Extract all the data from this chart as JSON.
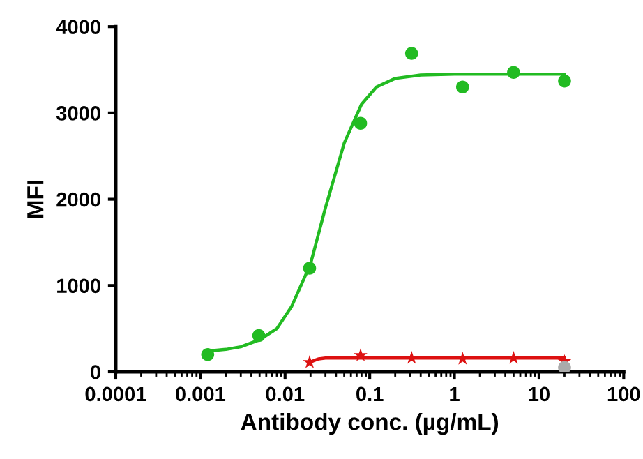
{
  "chart_data": {
    "type": "scatter",
    "xlabel": "Antibody conc. (µg/mL)",
    "ylabel": "MFI",
    "log": "x",
    "grid": false,
    "xlim": [
      0.0001,
      100
    ],
    "xticks": [
      {
        "value": 0.0001,
        "label": "0.0001"
      },
      {
        "value": 0.001,
        "label": "0.001"
      },
      {
        "value": 0.01,
        "label": "0.01"
      },
      {
        "value": 0.1,
        "label": "0.1"
      },
      {
        "value": 1,
        "label": "1"
      },
      {
        "value": 10,
        "label": "10"
      },
      {
        "value": 100,
        "label": "100"
      }
    ],
    "ylim": [
      0,
      4000
    ],
    "yticks": [
      0,
      1000,
      2000,
      3000,
      4000
    ],
    "series": [
      {
        "type": "line",
        "color": "#22bb22",
        "marker": "none",
        "line_style": "solid",
        "x": [
          0.00122,
          0.002,
          0.003,
          0.005,
          0.008,
          0.012,
          0.02,
          0.03,
          0.05,
          0.08,
          0.12,
          0.2,
          0.4,
          1,
          5,
          20
        ],
        "values": [
          240,
          260,
          290,
          370,
          500,
          760,
          1250,
          1900,
          2650,
          3100,
          3300,
          3400,
          3440,
          3450,
          3450,
          3450
        ]
      },
      {
        "color": "#22bb22",
        "marker": "circle",
        "x": [
          0.00122,
          0.0049,
          0.0195,
          0.078,
          0.3125,
          1.25,
          5,
          20
        ],
        "values": [
          200,
          420,
          1200,
          2880,
          3690,
          3300,
          3470,
          3370
        ]
      },
      {
        "type": "line",
        "color": "#dd1111",
        "marker": "none",
        "line_style": "solid",
        "x": [
          0.0195,
          0.022,
          0.025,
          0.03,
          0.05,
          0.1,
          1,
          20
        ],
        "values": [
          110,
          130,
          150,
          160,
          160,
          160,
          160,
          160
        ]
      },
      {
        "color": "#dd1111",
        "marker": "star",
        "x": [
          0.0195,
          0.078,
          0.3125,
          1.25,
          5,
          20
        ],
        "values": [
          110,
          190,
          160,
          150,
          160,
          120
        ]
      },
      {
        "color": "#aaaaaa",
        "marker": "circle",
        "x": [
          20
        ],
        "values": [
          50
        ]
      }
    ]
  }
}
